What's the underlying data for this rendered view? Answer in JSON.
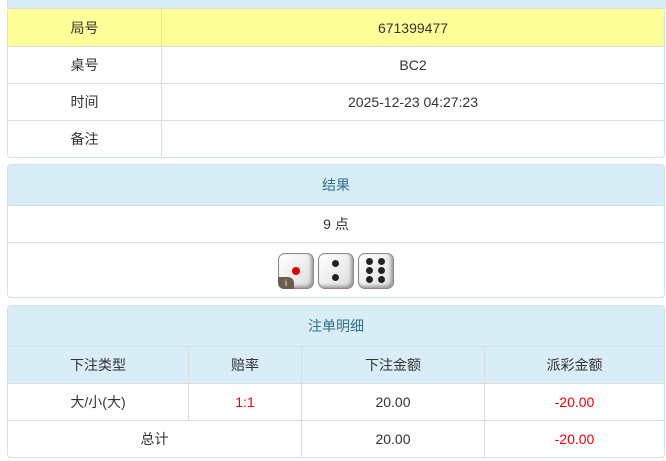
{
  "info": {
    "rows": [
      {
        "label": "局号",
        "value": "671399477"
      },
      {
        "label": "桌号",
        "value": "BC2"
      },
      {
        "label": "时间",
        "value": "2025-12-23 04:27:23"
      },
      {
        "label": "备注",
        "value": ""
      }
    ],
    "highlight_color": "#ffff99"
  },
  "result": {
    "title": "结果",
    "points": "9 点",
    "dice": [
      1,
      2,
      6
    ],
    "info_badge": "i"
  },
  "bets": {
    "title": "注单明细",
    "headers": [
      "下注类型",
      "赔率",
      "下注金额",
      "派彩金额"
    ],
    "rows": [
      {
        "type": "大/小(大)",
        "odds": "1:1",
        "amount": "20.00",
        "payout": "-20.00"
      }
    ],
    "total": {
      "label": "总计",
      "amount": "20.00",
      "payout": "-20.00"
    },
    "negative_color": "#ee0000"
  }
}
